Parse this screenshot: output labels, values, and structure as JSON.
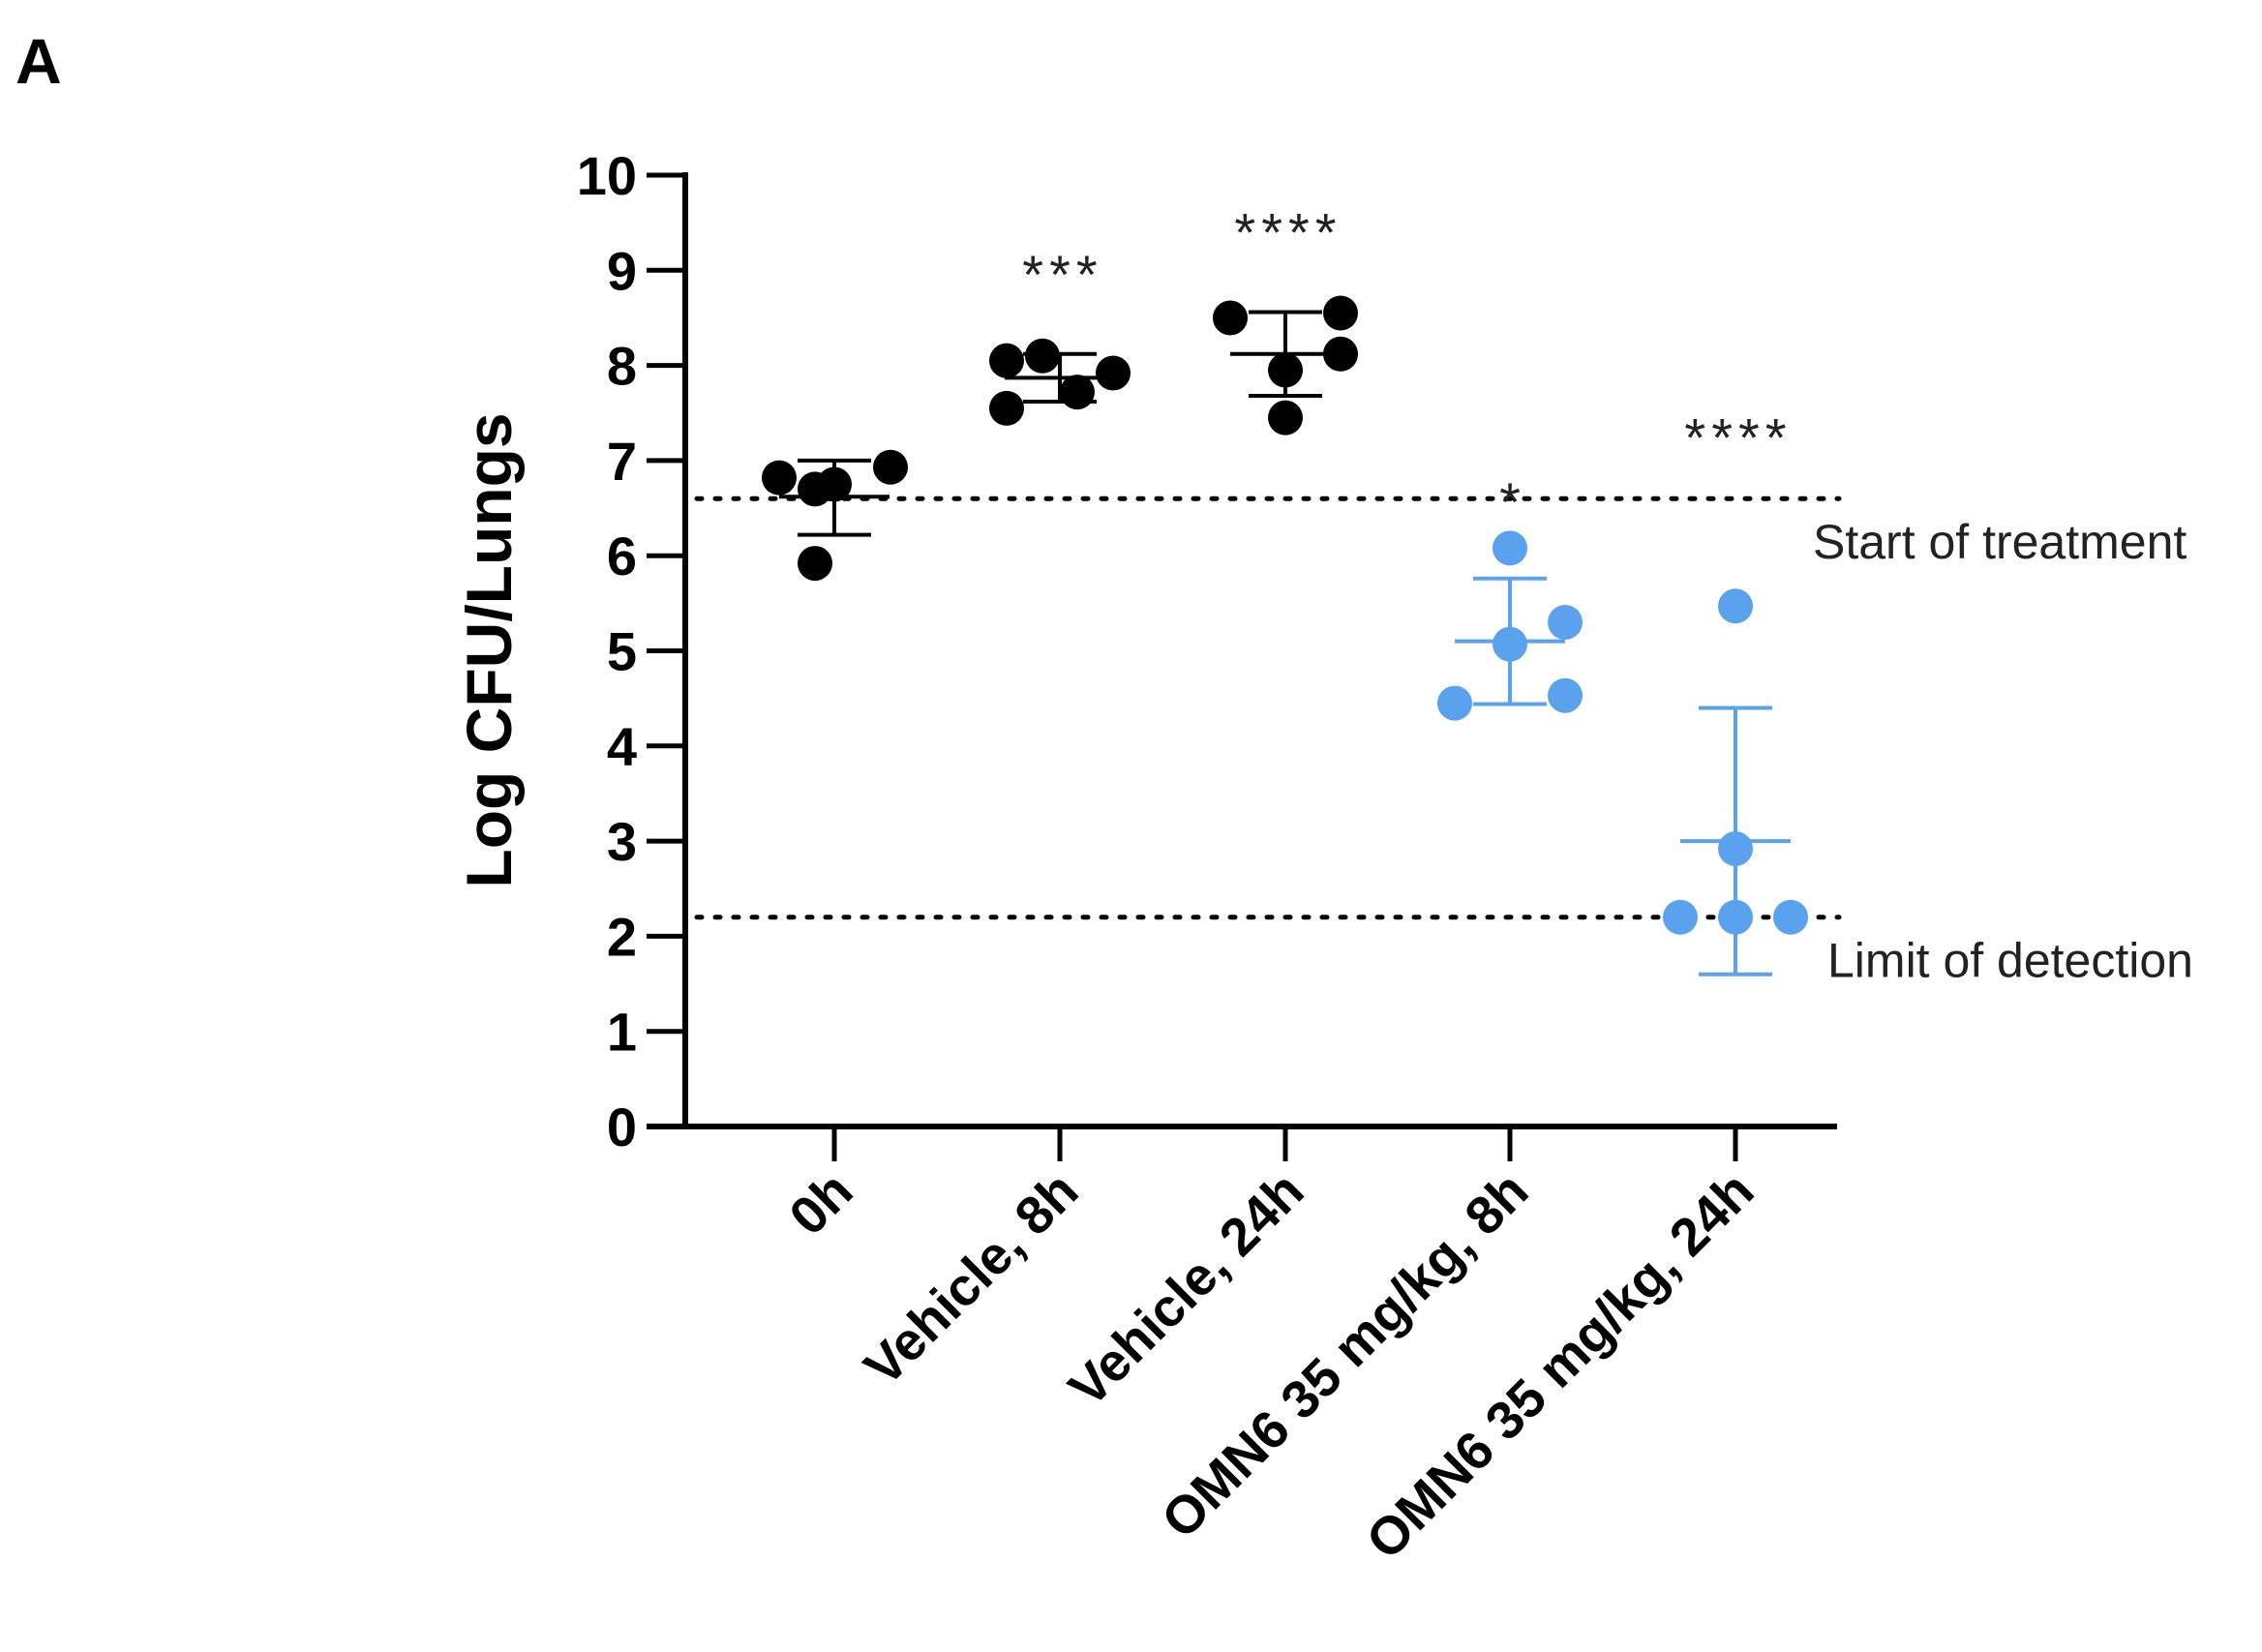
{
  "panel_label": "A",
  "chart_data": {
    "type": "scatter",
    "title": "",
    "xlabel": "",
    "ylabel": "Log CFU/Lungs",
    "ylim": [
      0,
      10
    ],
    "yticks": [
      "0",
      "1",
      "2",
      "3",
      "4",
      "5",
      "6",
      "7",
      "8",
      "9",
      "10"
    ],
    "categories": [
      "0h",
      "Vehicle, 8h",
      "Vehicle, 24h",
      "OMN6 35 mg/kg, 8h",
      "OMN6 35 mg/kg, 24h"
    ],
    "colors": {
      "vehicle": "#000000",
      "treatment": "#5aa2ee"
    },
    "groups": [
      {
        "name": "0h",
        "color": "#000000",
        "points": [
          6.82,
          6.7,
          6.75,
          6.93,
          5.92
        ],
        "mean": 6.62,
        "sd_low": 6.22,
        "sd_high": 7.0,
        "significance": ""
      },
      {
        "name": "Vehicle, 8h",
        "color": "#000000",
        "points": [
          8.05,
          8.1,
          7.55,
          7.72,
          7.92
        ],
        "mean": 7.87,
        "sd_low": 7.62,
        "sd_high": 8.12,
        "significance": "***"
      },
      {
        "name": "Vehicle, 24h",
        "color": "#000000",
        "points": [
          8.5,
          7.95,
          8.55,
          8.12,
          7.45
        ],
        "mean": 8.12,
        "sd_low": 7.68,
        "sd_high": 8.56,
        "significance": "****"
      },
      {
        "name": "OMN6 35 mg/kg, 8h",
        "color": "#5aa2ee",
        "points": [
          6.08,
          5.07,
          5.3,
          4.45,
          4.53
        ],
        "mean": 5.1,
        "sd_low": 4.44,
        "sd_high": 5.76,
        "significance": "*"
      },
      {
        "name": "OMN6 35 mg/kg, 24h",
        "color": "#5aa2ee",
        "points": [
          5.47,
          2.92,
          2.2,
          2.2,
          2.2
        ],
        "mean": 3.0,
        "sd_low": 1.6,
        "sd_high": 4.4,
        "significance": "****"
      }
    ],
    "reference_lines": [
      {
        "label": "Start of treatment",
        "y": 6.6
      },
      {
        "label": "Limit of detection",
        "y": 2.2
      }
    ]
  }
}
